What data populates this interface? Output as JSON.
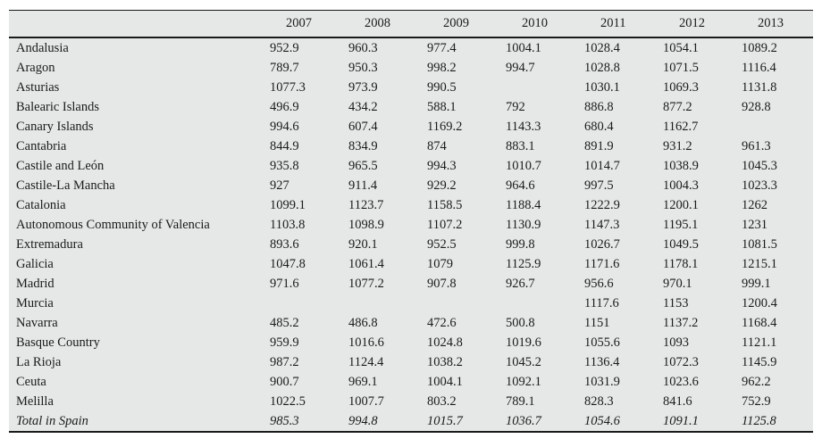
{
  "table": {
    "region_column_header": "",
    "columns": [
      "2007",
      "2008",
      "2009",
      "2010",
      "2011",
      "2012",
      "2013"
    ],
    "rows": [
      {
        "label": "Andalusia",
        "values": [
          "952.9",
          "960.3",
          "977.4",
          "1004.1",
          "1028.4",
          "1054.1",
          "1089.2"
        ]
      },
      {
        "label": "Aragon",
        "values": [
          "789.7",
          "950.3",
          "998.2",
          "994.7",
          "1028.8",
          "1071.5",
          "1116.4"
        ]
      },
      {
        "label": "Asturias",
        "values": [
          "1077.3",
          "973.9",
          "990.5",
          "",
          "1030.1",
          "1069.3",
          "1131.8"
        ]
      },
      {
        "label": "Balearic Islands",
        "values": [
          "496.9",
          "434.2",
          "588.1",
          "792",
          "886.8",
          "877.2",
          "928.8"
        ]
      },
      {
        "label": "Canary Islands",
        "values": [
          "994.6",
          "607.4",
          "1169.2",
          "1143.3",
          "680.4",
          "1162.7",
          ""
        ]
      },
      {
        "label": "Cantabria",
        "values": [
          "844.9",
          "834.9",
          "874",
          "883.1",
          "891.9",
          "931.2",
          "961.3"
        ]
      },
      {
        "label": "Castile and León",
        "values": [
          "935.8",
          "965.5",
          "994.3",
          "1010.7",
          "1014.7",
          "1038.9",
          "1045.3"
        ]
      },
      {
        "label": "Castile-La Mancha",
        "values": [
          "927",
          "911.4",
          "929.2",
          "964.6",
          "997.5",
          "1004.3",
          "1023.3"
        ]
      },
      {
        "label": "Catalonia",
        "values": [
          "1099.1",
          "1123.7",
          "1158.5",
          "1188.4",
          "1222.9",
          "1200.1",
          "1262"
        ]
      },
      {
        "label": "Autonomous Community of Valencia",
        "values": [
          "1103.8",
          "1098.9",
          "1107.2",
          "1130.9",
          "1147.3",
          "1195.1",
          "1231"
        ]
      },
      {
        "label": "Extremadura",
        "values": [
          "893.6",
          "920.1",
          "952.5",
          "999.8",
          "1026.7",
          "1049.5",
          "1081.5"
        ]
      },
      {
        "label": "Galicia",
        "values": [
          "1047.8",
          "1061.4",
          "1079",
          "1125.9",
          "1171.6",
          "1178.1",
          "1215.1"
        ]
      },
      {
        "label": "Madrid",
        "values": [
          "971.6",
          "1077.2",
          "907.8",
          "926.7",
          "956.6",
          "970.1",
          "999.1"
        ]
      },
      {
        "label": "Murcia",
        "values": [
          "",
          "",
          "",
          "",
          "1117.6",
          "1153",
          "1200.4"
        ]
      },
      {
        "label": "Navarra",
        "values": [
          "485.2",
          "486.8",
          "472.6",
          "500.8",
          "1151",
          "1137.2",
          "1168.4"
        ]
      },
      {
        "label": "Basque Country",
        "values": [
          "959.9",
          "1016.6",
          "1024.8",
          "1019.6",
          "1055.6",
          "1093",
          "1121.1"
        ]
      },
      {
        "label": "La Rioja",
        "values": [
          "987.2",
          "1124.4",
          "1038.2",
          "1045.2",
          "1136.4",
          "1072.3",
          "1145.9"
        ]
      },
      {
        "label": "Ceuta",
        "values": [
          "900.7",
          "969.1",
          "1004.1",
          "1092.1",
          "1031.9",
          "1023.6",
          "962.2"
        ]
      },
      {
        "label": "Melilla",
        "values": [
          "1022.5",
          "1007.7",
          "803.2",
          "789.1",
          "828.3",
          "841.6",
          "752.9"
        ]
      },
      {
        "label": "Total in Spain",
        "italic": true,
        "values": [
          "985.3",
          "994.8",
          "1015.7",
          "1036.7",
          "1054.6",
          "1091.1",
          "1125.8"
        ]
      }
    ]
  },
  "chart_data": {
    "type": "table",
    "title": "",
    "categories": [
      "2007",
      "2008",
      "2009",
      "2010",
      "2011",
      "2012",
      "2013"
    ],
    "series": [
      {
        "name": "Andalusia",
        "values": [
          952.9,
          960.3,
          977.4,
          1004.1,
          1028.4,
          1054.1,
          1089.2
        ]
      },
      {
        "name": "Aragon",
        "values": [
          789.7,
          950.3,
          998.2,
          994.7,
          1028.8,
          1071.5,
          1116.4
        ]
      },
      {
        "name": "Asturias",
        "values": [
          1077.3,
          973.9,
          990.5,
          null,
          1030.1,
          1069.3,
          1131.8
        ]
      },
      {
        "name": "Balearic Islands",
        "values": [
          496.9,
          434.2,
          588.1,
          792,
          886.8,
          877.2,
          928.8
        ]
      },
      {
        "name": "Canary Islands",
        "values": [
          994.6,
          607.4,
          1169.2,
          1143.3,
          680.4,
          1162.7,
          null
        ]
      },
      {
        "name": "Cantabria",
        "values": [
          844.9,
          834.9,
          874,
          883.1,
          891.9,
          931.2,
          961.3
        ]
      },
      {
        "name": "Castile and León",
        "values": [
          935.8,
          965.5,
          994.3,
          1010.7,
          1014.7,
          1038.9,
          1045.3
        ]
      },
      {
        "name": "Castile-La Mancha",
        "values": [
          927,
          911.4,
          929.2,
          964.6,
          997.5,
          1004.3,
          1023.3
        ]
      },
      {
        "name": "Catalonia",
        "values": [
          1099.1,
          1123.7,
          1158.5,
          1188.4,
          1222.9,
          1200.1,
          1262
        ]
      },
      {
        "name": "Autonomous Community of Valencia",
        "values": [
          1103.8,
          1098.9,
          1107.2,
          1130.9,
          1147.3,
          1195.1,
          1231
        ]
      },
      {
        "name": "Extremadura",
        "values": [
          893.6,
          920.1,
          952.5,
          999.8,
          1026.7,
          1049.5,
          1081.5
        ]
      },
      {
        "name": "Galicia",
        "values": [
          1047.8,
          1061.4,
          1079,
          1125.9,
          1171.6,
          1178.1,
          1215.1
        ]
      },
      {
        "name": "Madrid",
        "values": [
          971.6,
          1077.2,
          907.8,
          926.7,
          956.6,
          970.1,
          999.1
        ]
      },
      {
        "name": "Murcia",
        "values": [
          null,
          null,
          null,
          null,
          1117.6,
          1153,
          1200.4
        ]
      },
      {
        "name": "Navarra",
        "values": [
          485.2,
          486.8,
          472.6,
          500.8,
          1151,
          1137.2,
          1168.4
        ]
      },
      {
        "name": "Basque Country",
        "values": [
          959.9,
          1016.6,
          1024.8,
          1019.6,
          1055.6,
          1093,
          1121.1
        ]
      },
      {
        "name": "La Rioja",
        "values": [
          987.2,
          1124.4,
          1038.2,
          1045.2,
          1136.4,
          1072.3,
          1145.9
        ]
      },
      {
        "name": "Ceuta",
        "values": [
          900.7,
          969.1,
          1004.1,
          1092.1,
          1031.9,
          1023.6,
          962.2
        ]
      },
      {
        "name": "Melilla",
        "values": [
          1022.5,
          1007.7,
          803.2,
          789.1,
          828.3,
          841.6,
          752.9
        ]
      },
      {
        "name": "Total in Spain",
        "values": [
          985.3,
          994.8,
          1015.7,
          1036.7,
          1054.6,
          1091.1,
          1125.8
        ]
      }
    ]
  },
  "colors": {
    "table_background": "#e6e8e8",
    "rule": "#1a1a1a",
    "text": "#1a1a1a",
    "page_background": "#ffffff"
  }
}
